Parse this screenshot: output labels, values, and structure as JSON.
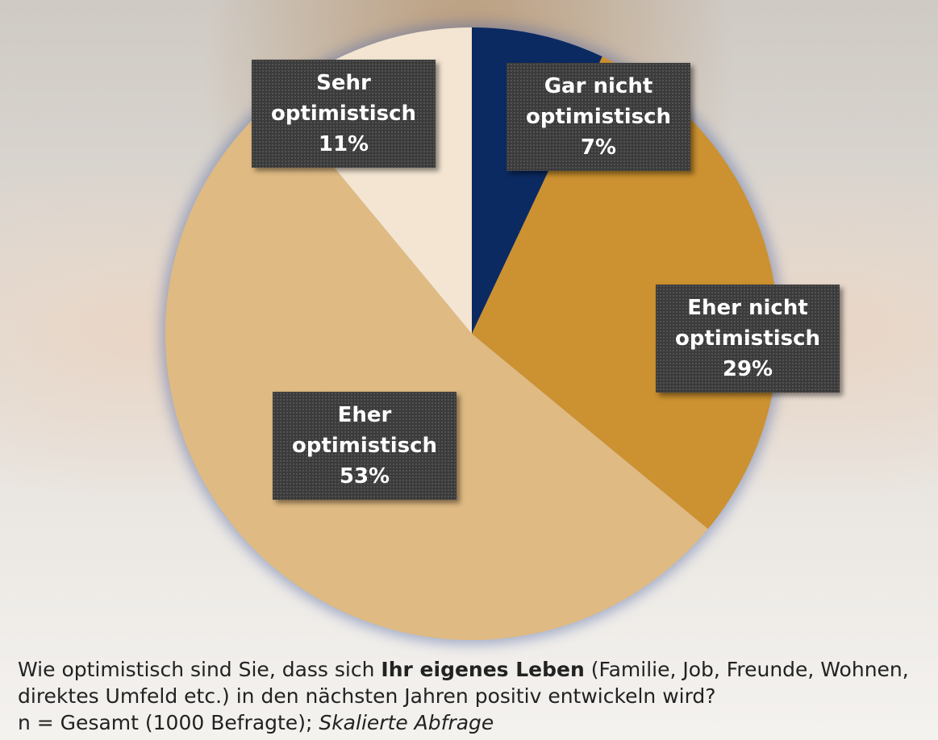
{
  "chart_data": {
    "type": "pie",
    "categories": [
      "Gar nicht optimistisch",
      "Eher nicht optimistisch",
      "Eher optimistisch",
      "Sehr optimistisch"
    ],
    "values": [
      7,
      29,
      53,
      11
    ],
    "value_labels": [
      "7%",
      "29%",
      "53%",
      "11%"
    ],
    "colors": [
      "#0b2a62",
      "#cc9130",
      "#dfba82",
      "#f3e5d1"
    ]
  },
  "caption": {
    "question_start": "Wie optimistisch sind Sie, dass sich ",
    "question_bold": "Ihr eigenes Leben",
    "question_end": " (Familie, Job, Freunde, Wohnen, direktes Umfeld etc.) in den nächsten Jahren positiv entwickeln wird?",
    "sample": "n  = Gesamt (1000 Befragte); ",
    "sample_italic": "Skalierte Abfrage"
  }
}
